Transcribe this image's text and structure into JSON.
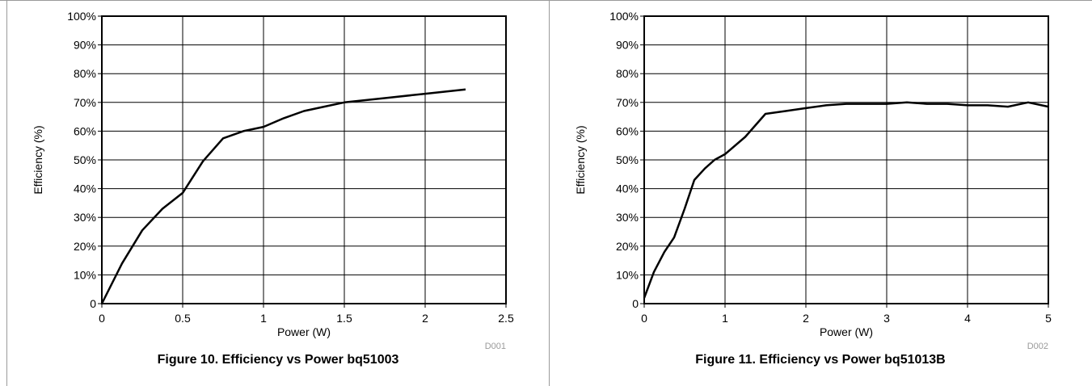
{
  "chart_data": [
    {
      "type": "line",
      "caption": "Figure 10. Efficiency vs Power bq51003",
      "xlabel": "Power (W)",
      "ylabel": "Efficiency (%)",
      "code": "D001",
      "xlim": [
        0,
        2.5
      ],
      "ylim": [
        0,
        100
      ],
      "xticks": [
        0,
        0.5,
        1,
        1.5,
        2,
        2.5
      ],
      "xtick_labels": [
        "0",
        "0.5",
        "1",
        "1.5",
        "2",
        "2.5"
      ],
      "yticks": [
        0,
        10,
        20,
        30,
        40,
        50,
        60,
        70,
        80,
        90,
        100
      ],
      "ytick_labels": [
        "0",
        "10%",
        "20%",
        "30%",
        "40%",
        "50%",
        "60%",
        "70%",
        "80%",
        "90%",
        "100%"
      ],
      "grid": true,
      "series": [
        {
          "x": [
            0,
            0.125,
            0.25,
            0.375,
            0.5,
            0.625,
            0.75,
            0.875,
            1.0,
            1.125,
            1.25,
            1.375,
            1.5,
            1.75,
            2.0,
            2.25
          ],
          "y": [
            0,
            14,
            25.5,
            33,
            38.5,
            49.5,
            57.5,
            60,
            61.5,
            64.5,
            67,
            68.5,
            70,
            71.5,
            73,
            74.5
          ]
        }
      ]
    },
    {
      "type": "line",
      "caption": "Figure 11. Efficiency vs Power bq51013B",
      "xlabel": "Power (W)",
      "ylabel": "Efficiency (%)",
      "code": "D002",
      "xlim": [
        0,
        5
      ],
      "ylim": [
        0,
        100
      ],
      "xticks": [
        0,
        1,
        2,
        3,
        4,
        5
      ],
      "xtick_labels": [
        "0",
        "1",
        "2",
        "3",
        "4",
        "5"
      ],
      "yticks": [
        0,
        10,
        20,
        30,
        40,
        50,
        60,
        70,
        80,
        90,
        100
      ],
      "ytick_labels": [
        "0",
        "10%",
        "20%",
        "30%",
        "40%",
        "50%",
        "60%",
        "70%",
        "80%",
        "90%",
        "100%"
      ],
      "grid": true,
      "series": [
        {
          "x": [
            0,
            0.12,
            0.25,
            0.37,
            0.5,
            0.62,
            0.75,
            0.87,
            1.0,
            1.25,
            1.5,
            1.75,
            2.0,
            2.25,
            2.5,
            2.75,
            3.0,
            3.25,
            3.5,
            3.75,
            4.0,
            4.25,
            4.5,
            4.75,
            5.0
          ],
          "y": [
            2,
            11,
            18,
            23,
            33,
            43,
            47,
            50,
            52,
            58,
            66,
            67,
            68,
            69,
            69.5,
            69.5,
            69.5,
            70,
            69.5,
            69.5,
            69,
            69,
            68.5,
            70,
            68.5
          ]
        }
      ]
    }
  ]
}
